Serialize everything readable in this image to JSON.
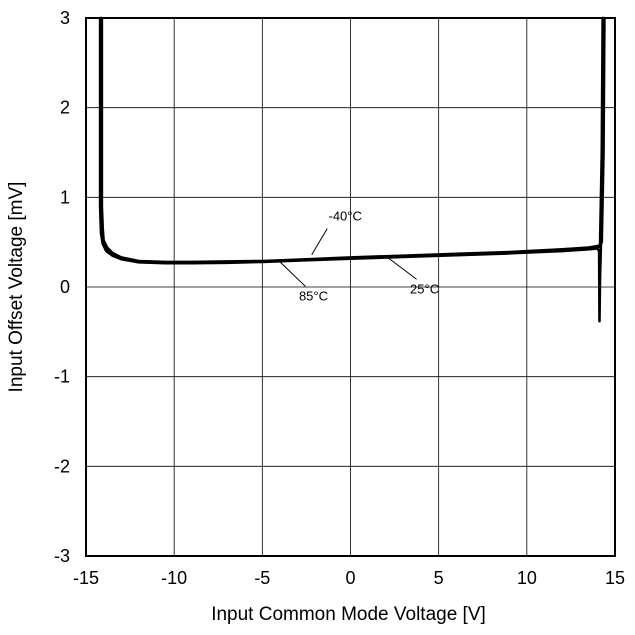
{
  "chart_data": {
    "type": "line",
    "title": "",
    "xlabel": "Input Common Mode Voltage  [V]",
    "ylabel": "Input Offset Voltage  [mV]",
    "xlim": [
      -15,
      15
    ],
    "ylim": [
      -3,
      3
    ],
    "grid": true,
    "xticks": [
      -15,
      -10,
      -5,
      0,
      5,
      10,
      15
    ],
    "yticks": [
      -3,
      -2,
      -1,
      0,
      1,
      2,
      3
    ],
    "xtick_labels": [
      "-15",
      "-10",
      "-5",
      "0",
      "5",
      "10",
      "15"
    ],
    "ytick_labels": [
      "-3",
      "-2",
      "-1",
      "0",
      "1",
      "2",
      "3"
    ],
    "series": [
      {
        "name": "-40°C",
        "x": [
          -14.1,
          -14.1,
          -14.05,
          -14.0,
          -13.8,
          -13.5,
          -13.0,
          -12.0,
          -10.5,
          -9.0,
          -7.0,
          -5.0,
          -3.0,
          0.0,
          3.0,
          6.0,
          9.0,
          12.0,
          13.5,
          14.1,
          14.25,
          14.35,
          14.4
        ],
        "y": [
          3.0,
          0.9,
          0.65,
          0.52,
          0.44,
          0.38,
          0.33,
          0.29,
          0.28,
          0.28,
          0.285,
          0.29,
          0.305,
          0.33,
          0.35,
          0.37,
          0.39,
          0.42,
          0.44,
          0.46,
          0.5,
          1.5,
          3.0
        ]
      },
      {
        "name": "25°C",
        "x": [
          -14.15,
          -14.15,
          -14.1,
          -14.0,
          -13.8,
          -13.5,
          -13.0,
          -12.0,
          -10.5,
          -9.0,
          -7.0,
          -5.0,
          -3.0,
          0.0,
          3.0,
          6.0,
          9.0,
          12.0,
          13.5,
          14.0,
          14.15,
          14.25,
          14.3
        ],
        "y": [
          3.0,
          0.9,
          0.62,
          0.5,
          0.42,
          0.37,
          0.32,
          0.285,
          0.27,
          0.27,
          0.275,
          0.285,
          0.3,
          0.32,
          0.34,
          0.36,
          0.38,
          0.41,
          0.43,
          0.44,
          0.45,
          1.5,
          3.0
        ]
      },
      {
        "name": "85°C",
        "x": [
          -14.2,
          -14.2,
          -14.15,
          -14.05,
          -13.85,
          -13.5,
          -13.0,
          -12.0,
          -10.5,
          -9.0,
          -7.0,
          -5.0,
          -3.0,
          0.0,
          3.0,
          6.0,
          9.0,
          12.0,
          13.5,
          14.0,
          14.1,
          14.12,
          14.15,
          14.2,
          14.28,
          14.32
        ],
        "y": [
          3.0,
          0.9,
          0.6,
          0.48,
          0.4,
          0.35,
          0.31,
          0.275,
          0.265,
          0.265,
          0.27,
          0.28,
          0.295,
          0.315,
          0.335,
          0.355,
          0.375,
          0.4,
          0.42,
          0.43,
          0.4,
          -0.38,
          0.1,
          0.45,
          1.5,
          3.0
        ]
      }
    ],
    "annotations": [
      {
        "text": "-40°C",
        "x": -2.2,
        "y": 0.36,
        "label_x": -0.3,
        "label_y": 0.74
      },
      {
        "text": "25°C",
        "x": 2.1,
        "y": 0.33,
        "label_x": 4.2,
        "label_y": -0.07
      },
      {
        "text": "85°C",
        "x": -4.0,
        "y": 0.28,
        "label_x": -2.1,
        "label_y": -0.15
      }
    ]
  }
}
